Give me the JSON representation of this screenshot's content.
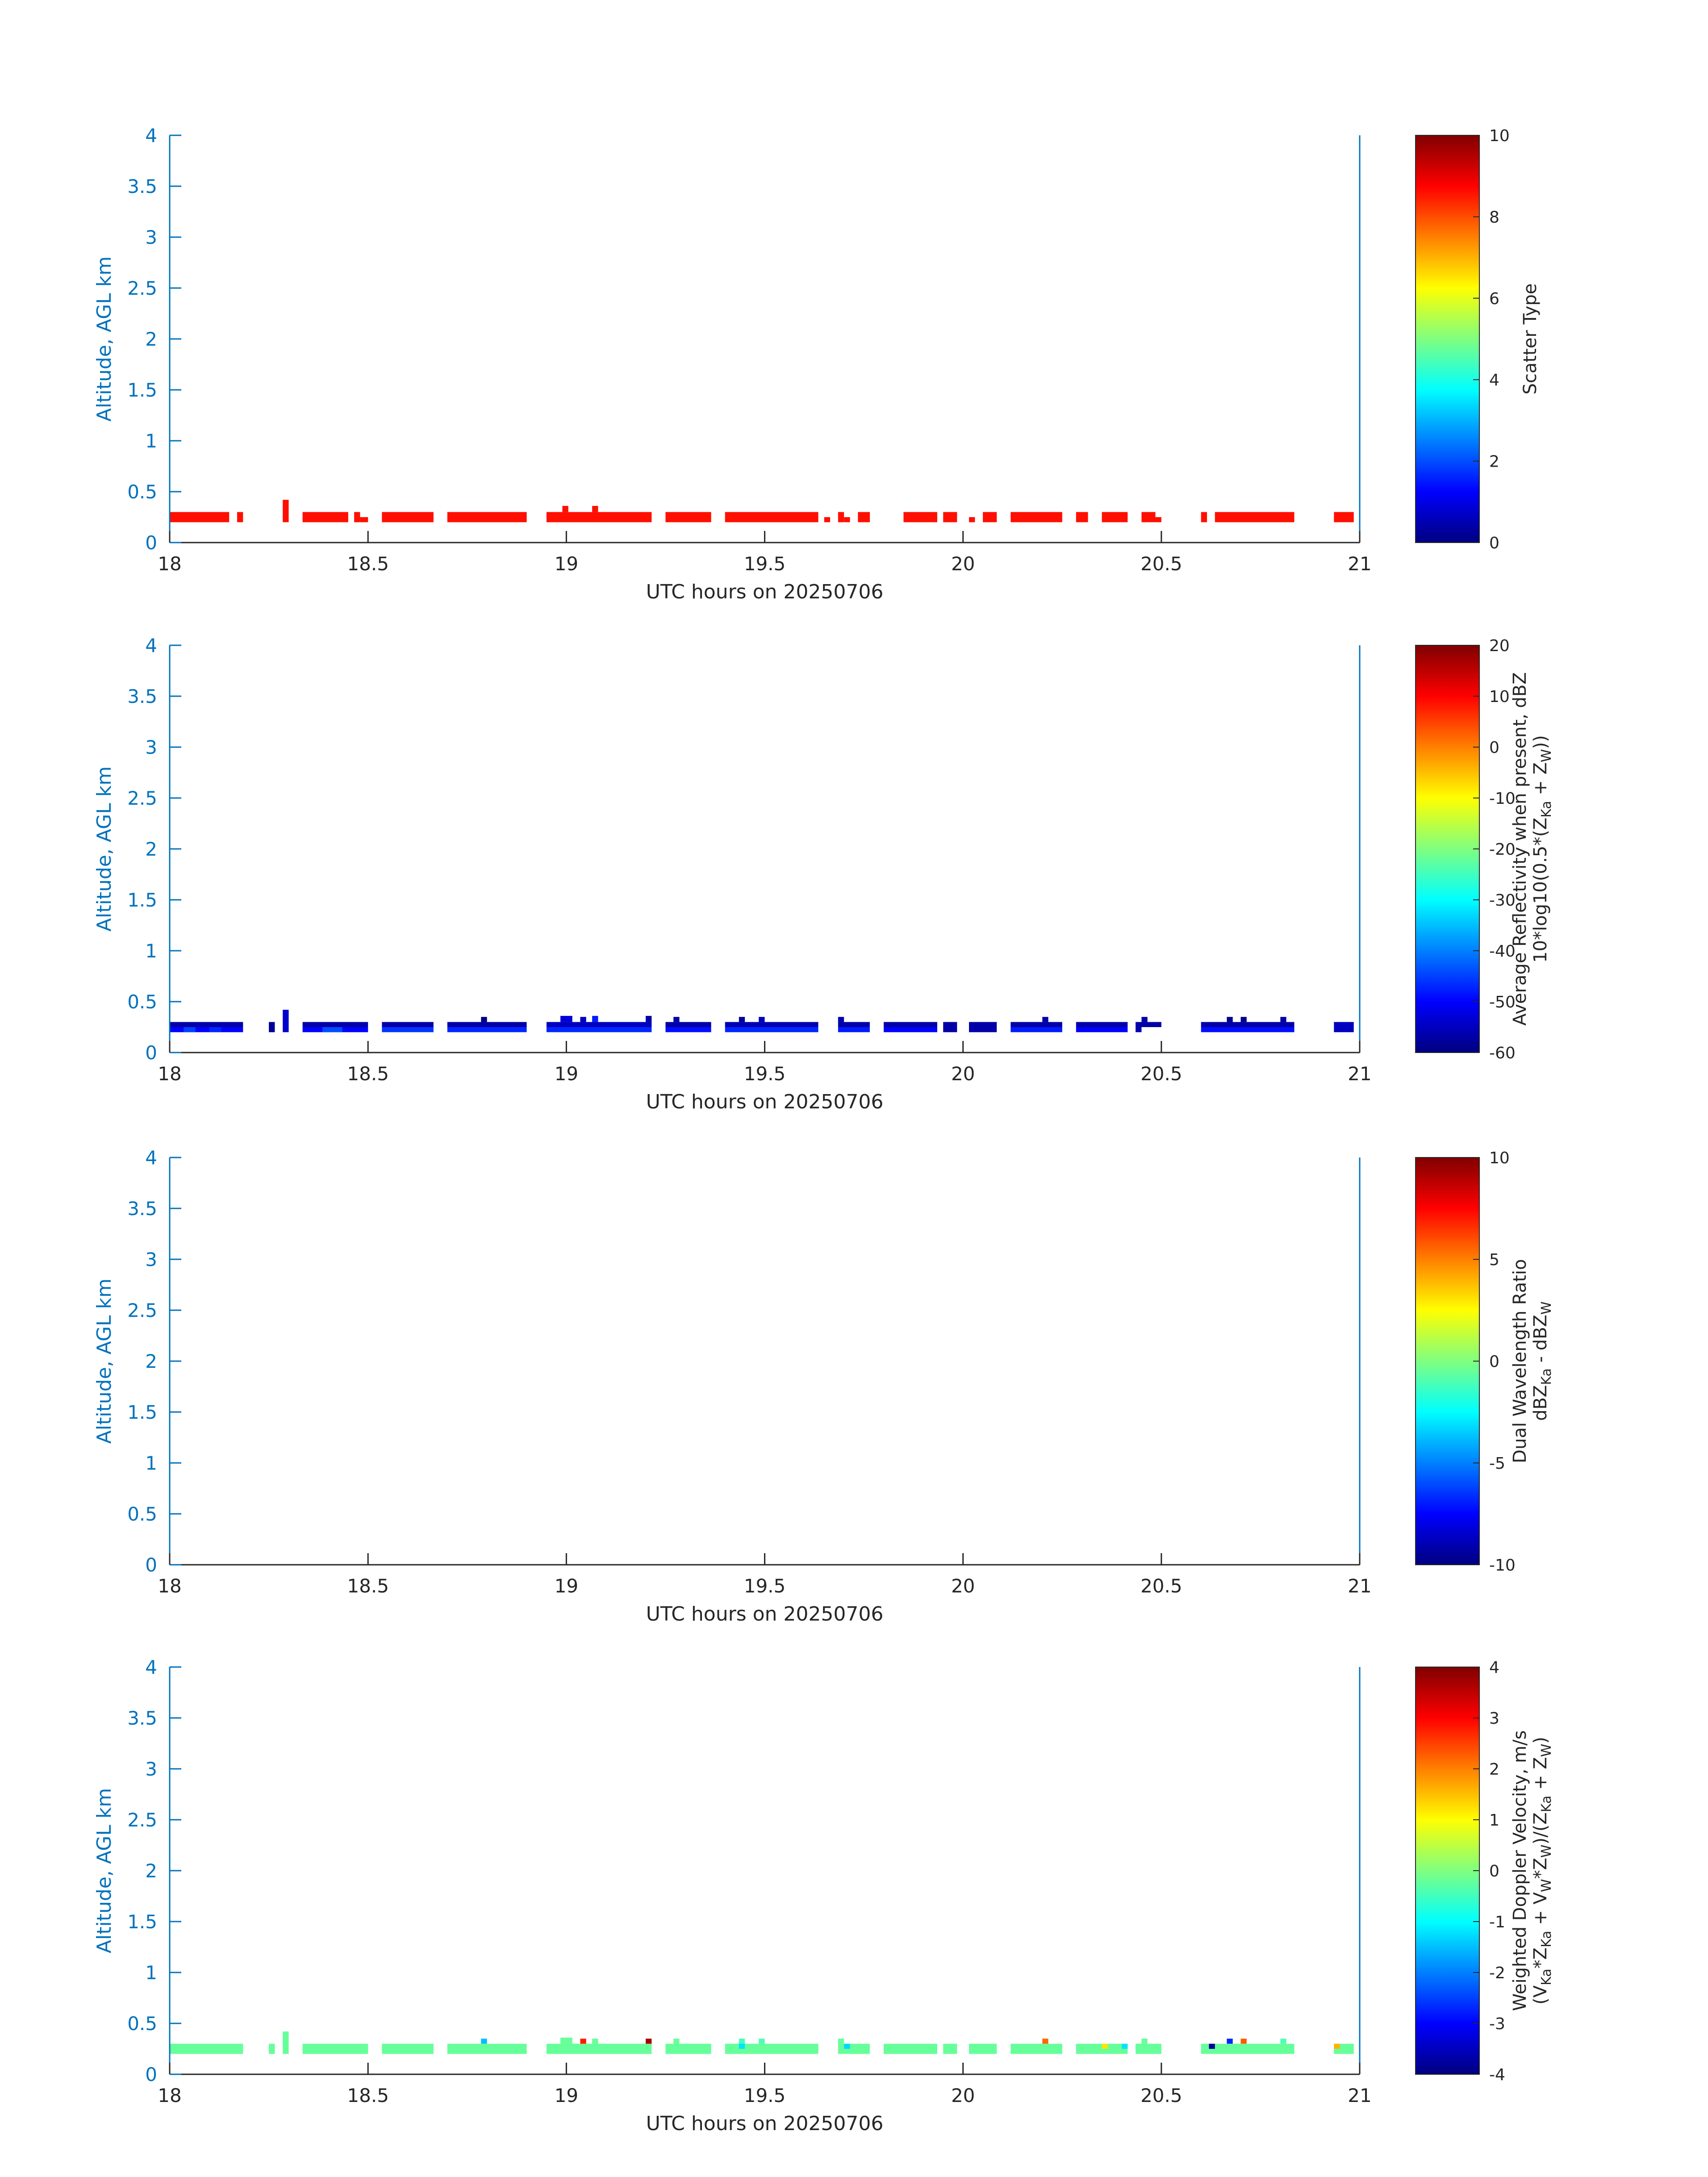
{
  "chart_data": [
    {
      "type": "heatmap",
      "xlabel": "UTC hours on 20250706",
      "ylabel": "Altitude, AGL km",
      "xlim": [
        18,
        21
      ],
      "ylim": [
        0,
        4
      ],
      "xticks": [
        "18",
        "18.5",
        "19",
        "19.5",
        "20",
        "20.5",
        "21"
      ],
      "yticks": [
        "0",
        "0.5",
        "1",
        "1.5",
        "2",
        "2.5",
        "3",
        "3.5",
        "4"
      ],
      "colormap": "jet",
      "colorbar": {
        "label_lines": [
          [
            "Scatter Type"
          ]
        ],
        "range": [
          0,
          10
        ],
        "ticks": [
          "0",
          "2",
          "4",
          "6",
          "8",
          "10"
        ]
      },
      "grid": false,
      "cells": [
        {
          "x0": 18.0,
          "x1": 18.15,
          "y0": 0.2,
          "y1": 0.3,
          "value": 8.6
        },
        {
          "x0": 18.17,
          "x1": 18.185,
          "y0": 0.2,
          "y1": 0.3,
          "value": 8.6
        },
        {
          "x0": 18.285,
          "x1": 18.3,
          "y0": 0.2,
          "y1": 0.42,
          "value": 8.6
        },
        {
          "x0": 18.335,
          "x1": 18.45,
          "y0": 0.2,
          "y1": 0.3,
          "value": 8.6
        },
        {
          "x0": 18.465,
          "x1": 18.48,
          "y0": 0.2,
          "y1": 0.3,
          "value": 8.6
        },
        {
          "x0": 18.48,
          "x1": 18.5,
          "y0": 0.2,
          "y1": 0.25,
          "value": 8.6
        },
        {
          "x0": 18.535,
          "x1": 18.665,
          "y0": 0.2,
          "y1": 0.3,
          "value": 8.6
        },
        {
          "x0": 18.7,
          "x1": 18.9,
          "y0": 0.2,
          "y1": 0.3,
          "value": 8.6
        },
        {
          "x0": 18.95,
          "x1": 19.215,
          "y0": 0.2,
          "y1": 0.3,
          "value": 8.6
        },
        {
          "x0": 18.99,
          "x1": 19.005,
          "y0": 0.3,
          "y1": 0.36,
          "value": 8.6
        },
        {
          "x0": 19.065,
          "x1": 19.08,
          "y0": 0.3,
          "y1": 0.36,
          "value": 8.6
        },
        {
          "x0": 19.25,
          "x1": 19.365,
          "y0": 0.2,
          "y1": 0.3,
          "value": 8.6
        },
        {
          "x0": 19.4,
          "x1": 19.635,
          "y0": 0.2,
          "y1": 0.3,
          "value": 8.6
        },
        {
          "x0": 19.65,
          "x1": 19.665,
          "y0": 0.2,
          "y1": 0.25,
          "value": 8.6
        },
        {
          "x0": 19.685,
          "x1": 19.7,
          "y0": 0.2,
          "y1": 0.3,
          "value": 8.6
        },
        {
          "x0": 19.7,
          "x1": 19.715,
          "y0": 0.2,
          "y1": 0.25,
          "value": 8.6
        },
        {
          "x0": 19.735,
          "x1": 19.765,
          "y0": 0.2,
          "y1": 0.3,
          "value": 8.6
        },
        {
          "x0": 19.85,
          "x1": 19.935,
          "y0": 0.2,
          "y1": 0.3,
          "value": 8.6
        },
        {
          "x0": 19.95,
          "x1": 19.985,
          "y0": 0.2,
          "y1": 0.3,
          "value": 8.6
        },
        {
          "x0": 20.015,
          "x1": 20.03,
          "y0": 0.2,
          "y1": 0.25,
          "value": 8.6
        },
        {
          "x0": 20.05,
          "x1": 20.085,
          "y0": 0.2,
          "y1": 0.3,
          "value": 8.6
        },
        {
          "x0": 20.12,
          "x1": 20.25,
          "y0": 0.2,
          "y1": 0.3,
          "value": 8.6
        },
        {
          "x0": 20.285,
          "x1": 20.315,
          "y0": 0.2,
          "y1": 0.3,
          "value": 8.6
        },
        {
          "x0": 20.35,
          "x1": 20.415,
          "y0": 0.2,
          "y1": 0.3,
          "value": 8.6
        },
        {
          "x0": 20.45,
          "x1": 20.485,
          "y0": 0.2,
          "y1": 0.3,
          "value": 8.6
        },
        {
          "x0": 20.485,
          "x1": 20.5,
          "y0": 0.2,
          "y1": 0.25,
          "value": 8.6
        },
        {
          "x0": 20.6,
          "x1": 20.615,
          "y0": 0.2,
          "y1": 0.3,
          "value": 8.6
        },
        {
          "x0": 20.635,
          "x1": 20.835,
          "y0": 0.2,
          "y1": 0.3,
          "value": 8.6
        },
        {
          "x0": 20.935,
          "x1": 20.985,
          "y0": 0.2,
          "y1": 0.3,
          "value": 8.6
        }
      ]
    },
    {
      "type": "heatmap",
      "xlabel": "UTC hours on 20250706",
      "ylabel": "Altitude, AGL km",
      "xlim": [
        18,
        21
      ],
      "ylim": [
        0,
        4
      ],
      "xticks": [
        "18",
        "18.5",
        "19",
        "19.5",
        "20",
        "20.5",
        "21"
      ],
      "yticks": [
        "0",
        "0.5",
        "1",
        "1.5",
        "2",
        "2.5",
        "3",
        "3.5",
        "4"
      ],
      "colormap": "jet",
      "colorbar": {
        "label_lines": [
          [
            "Average Reflectivity when present, dBZ"
          ],
          [
            "10*log10(0.5*(Z",
            {
              "sub": "Ka"
            },
            " + Z",
            {
              "sub": "W"
            },
            "))"
          ]
        ],
        "range": [
          -60,
          20
        ],
        "ticks": [
          "-60",
          "-50",
          "-40",
          "-30",
          "-20",
          "-10",
          "0",
          "10",
          "20"
        ]
      },
      "grid": false,
      "cells": [
        {
          "x0": 18.0,
          "x1": 18.185,
          "y0": 0.25,
          "y1": 0.3,
          "value": -57
        },
        {
          "x0": 18.0,
          "x1": 18.185,
          "y0": 0.2,
          "y1": 0.25,
          "value": -50
        },
        {
          "x0": 18.035,
          "x1": 18.065,
          "y0": 0.2,
          "y1": 0.25,
          "value": -45
        },
        {
          "x0": 18.1,
          "x1": 18.13,
          "y0": 0.2,
          "y1": 0.25,
          "value": -47
        },
        {
          "x0": 18.25,
          "x1": 18.265,
          "y0": 0.2,
          "y1": 0.3,
          "value": -58
        },
        {
          "x0": 18.285,
          "x1": 18.3,
          "y0": 0.2,
          "y1": 0.42,
          "value": -54
        },
        {
          "x0": 18.335,
          "x1": 18.5,
          "y0": 0.25,
          "y1": 0.3,
          "value": -57
        },
        {
          "x0": 18.335,
          "x1": 18.5,
          "y0": 0.2,
          "y1": 0.25,
          "value": -50
        },
        {
          "x0": 18.385,
          "x1": 18.435,
          "y0": 0.2,
          "y1": 0.25,
          "value": -44
        },
        {
          "x0": 18.535,
          "x1": 18.665,
          "y0": 0.25,
          "y1": 0.3,
          "value": -57
        },
        {
          "x0": 18.535,
          "x1": 18.665,
          "y0": 0.2,
          "y1": 0.25,
          "value": -46
        },
        {
          "x0": 18.7,
          "x1": 18.9,
          "y0": 0.25,
          "y1": 0.3,
          "value": -57
        },
        {
          "x0": 18.7,
          "x1": 18.9,
          "y0": 0.2,
          "y1": 0.25,
          "value": -47
        },
        {
          "x0": 18.785,
          "x1": 18.8,
          "y0": 0.3,
          "y1": 0.35,
          "value": -60
        },
        {
          "x0": 18.95,
          "x1": 19.215,
          "y0": 0.25,
          "y1": 0.3,
          "value": -55
        },
        {
          "x0": 18.95,
          "x1": 19.215,
          "y0": 0.2,
          "y1": 0.25,
          "value": -47
        },
        {
          "x0": 18.985,
          "x1": 19.015,
          "y0": 0.3,
          "y1": 0.36,
          "value": -53
        },
        {
          "x0": 19.035,
          "x1": 19.05,
          "y0": 0.3,
          "y1": 0.35,
          "value": -55
        },
        {
          "x0": 19.065,
          "x1": 19.08,
          "y0": 0.3,
          "y1": 0.36,
          "value": -48
        },
        {
          "x0": 19.2,
          "x1": 19.215,
          "y0": 0.3,
          "y1": 0.36,
          "value": -57
        },
        {
          "x0": 19.25,
          "x1": 19.365,
          "y0": 0.25,
          "y1": 0.3,
          "value": -57
        },
        {
          "x0": 19.25,
          "x1": 19.365,
          "y0": 0.2,
          "y1": 0.25,
          "value": -49
        },
        {
          "x0": 19.27,
          "x1": 19.285,
          "y0": 0.3,
          "y1": 0.35,
          "value": -57
        },
        {
          "x0": 19.4,
          "x1": 19.635,
          "y0": 0.25,
          "y1": 0.3,
          "value": -56
        },
        {
          "x0": 19.4,
          "x1": 19.635,
          "y0": 0.2,
          "y1": 0.25,
          "value": -47
        },
        {
          "x0": 19.435,
          "x1": 19.45,
          "y0": 0.3,
          "y1": 0.35,
          "value": -58
        },
        {
          "x0": 19.485,
          "x1": 19.5,
          "y0": 0.3,
          "y1": 0.35,
          "value": -55
        },
        {
          "x0": 19.685,
          "x1": 19.765,
          "y0": 0.25,
          "y1": 0.3,
          "value": -57
        },
        {
          "x0": 19.685,
          "x1": 19.765,
          "y0": 0.2,
          "y1": 0.25,
          "value": -48
        },
        {
          "x0": 19.685,
          "x1": 19.7,
          "y0": 0.3,
          "y1": 0.35,
          "value": -56
        },
        {
          "x0": 19.8,
          "x1": 19.935,
          "y0": 0.25,
          "y1": 0.3,
          "value": -57
        },
        {
          "x0": 19.8,
          "x1": 19.935,
          "y0": 0.2,
          "y1": 0.25,
          "value": -50
        },
        {
          "x0": 19.95,
          "x1": 19.985,
          "y0": 0.2,
          "y1": 0.3,
          "value": -57
        },
        {
          "x0": 20.015,
          "x1": 20.085,
          "y0": 0.2,
          "y1": 0.3,
          "value": -57
        },
        {
          "x0": 20.12,
          "x1": 20.25,
          "y0": 0.25,
          "y1": 0.3,
          "value": -57
        },
        {
          "x0": 20.12,
          "x1": 20.25,
          "y0": 0.2,
          "y1": 0.25,
          "value": -48
        },
        {
          "x0": 20.2,
          "x1": 20.215,
          "y0": 0.3,
          "y1": 0.35,
          "value": -57
        },
        {
          "x0": 20.285,
          "x1": 20.415,
          "y0": 0.25,
          "y1": 0.3,
          "value": -57
        },
        {
          "x0": 20.285,
          "x1": 20.415,
          "y0": 0.2,
          "y1": 0.25,
          "value": -50
        },
        {
          "x0": 20.435,
          "x1": 20.5,
          "y0": 0.25,
          "y1": 0.3,
          "value": -57
        },
        {
          "x0": 20.45,
          "x1": 20.465,
          "y0": 0.3,
          "y1": 0.35,
          "value": -57
        },
        {
          "x0": 20.435,
          "x1": 20.45,
          "y0": 0.2,
          "y1": 0.25,
          "value": -56
        },
        {
          "x0": 20.6,
          "x1": 20.835,
          "y0": 0.25,
          "y1": 0.3,
          "value": -57
        },
        {
          "x0": 20.6,
          "x1": 20.835,
          "y0": 0.2,
          "y1": 0.25,
          "value": -49
        },
        {
          "x0": 20.665,
          "x1": 20.68,
          "y0": 0.3,
          "y1": 0.35,
          "value": -59
        },
        {
          "x0": 20.7,
          "x1": 20.715,
          "y0": 0.3,
          "y1": 0.35,
          "value": -59
        },
        {
          "x0": 20.8,
          "x1": 20.815,
          "y0": 0.3,
          "y1": 0.35,
          "value": -57
        },
        {
          "x0": 20.935,
          "x1": 20.985,
          "y0": 0.2,
          "y1": 0.3,
          "value": -55
        }
      ]
    },
    {
      "type": "heatmap",
      "xlabel": "UTC hours on 20250706",
      "ylabel": "Altitude, AGL km",
      "xlim": [
        18,
        21
      ],
      "ylim": [
        0,
        4
      ],
      "xticks": [
        "18",
        "18.5",
        "19",
        "19.5",
        "20",
        "20.5",
        "21"
      ],
      "yticks": [
        "0",
        "0.5",
        "1",
        "1.5",
        "2",
        "2.5",
        "3",
        "3.5",
        "4"
      ],
      "colormap": "jet",
      "colorbar": {
        "label_lines": [
          [
            "Dual Wavelength Ratio"
          ],
          [
            "dBZ",
            {
              "sub": "Ka"
            },
            " - dBZ",
            {
              "sub": "W"
            }
          ]
        ],
        "range": [
          -10,
          10
        ],
        "ticks": [
          "-10",
          "-5",
          "0",
          "5",
          "10"
        ]
      },
      "grid": false,
      "cells": []
    },
    {
      "type": "heatmap",
      "xlabel": "UTC hours on 20250706",
      "ylabel": "Altitude, AGL km",
      "xlim": [
        18,
        21
      ],
      "ylim": [
        0,
        4
      ],
      "xticks": [
        "18",
        "18.5",
        "19",
        "19.5",
        "20",
        "20.5",
        "21"
      ],
      "yticks": [
        "0",
        "0.5",
        "1",
        "1.5",
        "2",
        "2.5",
        "3",
        "3.5",
        "4"
      ],
      "colormap": "jet",
      "colorbar": {
        "label_lines": [
          [
            "Weighted Doppler Velocity, m/s"
          ],
          [
            "(V",
            {
              "sub": "Ka"
            },
            "*Z",
            {
              "sub": "Ka"
            },
            " + V",
            {
              "sub": "W"
            },
            "*Z",
            {
              "sub": "W"
            },
            ")/(Z",
            {
              "sub": "Ka"
            },
            " + Z",
            {
              "sub": "W"
            },
            ")"
          ]
        ],
        "range": [
          -4,
          4
        ],
        "ticks": [
          "-4",
          "-3",
          "-2",
          "-1",
          "0",
          "1",
          "2",
          "3",
          "4"
        ]
      },
      "grid": false,
      "cells": [
        {
          "x0": 18.0,
          "x1": 18.185,
          "y0": 0.2,
          "y1": 0.3,
          "value": -0.2
        },
        {
          "x0": 18.25,
          "x1": 18.265,
          "y0": 0.2,
          "y1": 0.3,
          "value": -0.2
        },
        {
          "x0": 18.285,
          "x1": 18.3,
          "y0": 0.2,
          "y1": 0.42,
          "value": -0.2
        },
        {
          "x0": 18.335,
          "x1": 18.5,
          "y0": 0.2,
          "y1": 0.3,
          "value": -0.2
        },
        {
          "x0": 18.535,
          "x1": 18.665,
          "y0": 0.2,
          "y1": 0.3,
          "value": -0.2
        },
        {
          "x0": 18.7,
          "x1": 18.9,
          "y0": 0.2,
          "y1": 0.3,
          "value": -0.2
        },
        {
          "x0": 18.785,
          "x1": 18.8,
          "y0": 0.3,
          "y1": 0.35,
          "value": -1.5
        },
        {
          "x0": 18.95,
          "x1": 19.215,
          "y0": 0.2,
          "y1": 0.3,
          "value": -0.2
        },
        {
          "x0": 18.985,
          "x1": 19.015,
          "y0": 0.3,
          "y1": 0.36,
          "value": -0.2
        },
        {
          "x0": 19.035,
          "x1": 19.05,
          "y0": 0.3,
          "y1": 0.35,
          "value": 2.8
        },
        {
          "x0": 19.065,
          "x1": 19.08,
          "y0": 0.3,
          "y1": 0.35,
          "value": -0.2
        },
        {
          "x0": 19.2,
          "x1": 19.215,
          "y0": 0.3,
          "y1": 0.35,
          "value": 3.7
        },
        {
          "x0": 19.25,
          "x1": 19.365,
          "y0": 0.2,
          "y1": 0.3,
          "value": -0.2
        },
        {
          "x0": 19.27,
          "x1": 19.285,
          "y0": 0.3,
          "y1": 0.35,
          "value": -0.2
        },
        {
          "x0": 19.4,
          "x1": 19.635,
          "y0": 0.2,
          "y1": 0.3,
          "value": -0.2
        },
        {
          "x0": 19.435,
          "x1": 19.45,
          "y0": 0.3,
          "y1": 0.35,
          "value": -0.5
        },
        {
          "x0": 19.435,
          "x1": 19.45,
          "y0": 0.25,
          "y1": 0.3,
          "value": -1.2
        },
        {
          "x0": 19.485,
          "x1": 19.5,
          "y0": 0.3,
          "y1": 0.35,
          "value": -0.4
        },
        {
          "x0": 19.685,
          "x1": 19.765,
          "y0": 0.2,
          "y1": 0.3,
          "value": -0.2
        },
        {
          "x0": 19.685,
          "x1": 19.7,
          "y0": 0.3,
          "y1": 0.35,
          "value": -0.2
        },
        {
          "x0": 19.7,
          "x1": 19.715,
          "y0": 0.25,
          "y1": 0.3,
          "value": -1.3
        },
        {
          "x0": 19.8,
          "x1": 19.935,
          "y0": 0.2,
          "y1": 0.3,
          "value": -0.2
        },
        {
          "x0": 19.95,
          "x1": 19.985,
          "y0": 0.2,
          "y1": 0.3,
          "value": -0.2
        },
        {
          "x0": 20.015,
          "x1": 20.085,
          "y0": 0.2,
          "y1": 0.3,
          "value": -0.2
        },
        {
          "x0": 20.12,
          "x1": 20.25,
          "y0": 0.2,
          "y1": 0.3,
          "value": -0.2
        },
        {
          "x0": 20.2,
          "x1": 20.215,
          "y0": 0.3,
          "y1": 0.35,
          "value": 2.2
        },
        {
          "x0": 20.285,
          "x1": 20.415,
          "y0": 0.2,
          "y1": 0.3,
          "value": -0.2
        },
        {
          "x0": 20.35,
          "x1": 20.365,
          "y0": 0.25,
          "y1": 0.3,
          "value": 1.2
        },
        {
          "x0": 20.4,
          "x1": 20.415,
          "y0": 0.25,
          "y1": 0.3,
          "value": -1.2
        },
        {
          "x0": 20.435,
          "x1": 20.5,
          "y0": 0.2,
          "y1": 0.3,
          "value": -0.2
        },
        {
          "x0": 20.45,
          "x1": 20.465,
          "y0": 0.3,
          "y1": 0.35,
          "value": -0.2
        },
        {
          "x0": 20.6,
          "x1": 20.835,
          "y0": 0.2,
          "y1": 0.3,
          "value": -0.2
        },
        {
          "x0": 20.62,
          "x1": 20.635,
          "y0": 0.25,
          "y1": 0.3,
          "value": -3.8
        },
        {
          "x0": 20.665,
          "x1": 20.68,
          "y0": 0.3,
          "y1": 0.35,
          "value": -2.7
        },
        {
          "x0": 20.7,
          "x1": 20.715,
          "y0": 0.3,
          "y1": 0.35,
          "value": 2.3
        },
        {
          "x0": 20.8,
          "x1": 20.815,
          "y0": 0.3,
          "y1": 0.35,
          "value": -0.4
        },
        {
          "x0": 20.935,
          "x1": 20.985,
          "y0": 0.2,
          "y1": 0.3,
          "value": -0.2
        },
        {
          "x0": 20.935,
          "x1": 20.95,
          "y0": 0.25,
          "y1": 0.3,
          "value": 1.6
        }
      ]
    }
  ]
}
